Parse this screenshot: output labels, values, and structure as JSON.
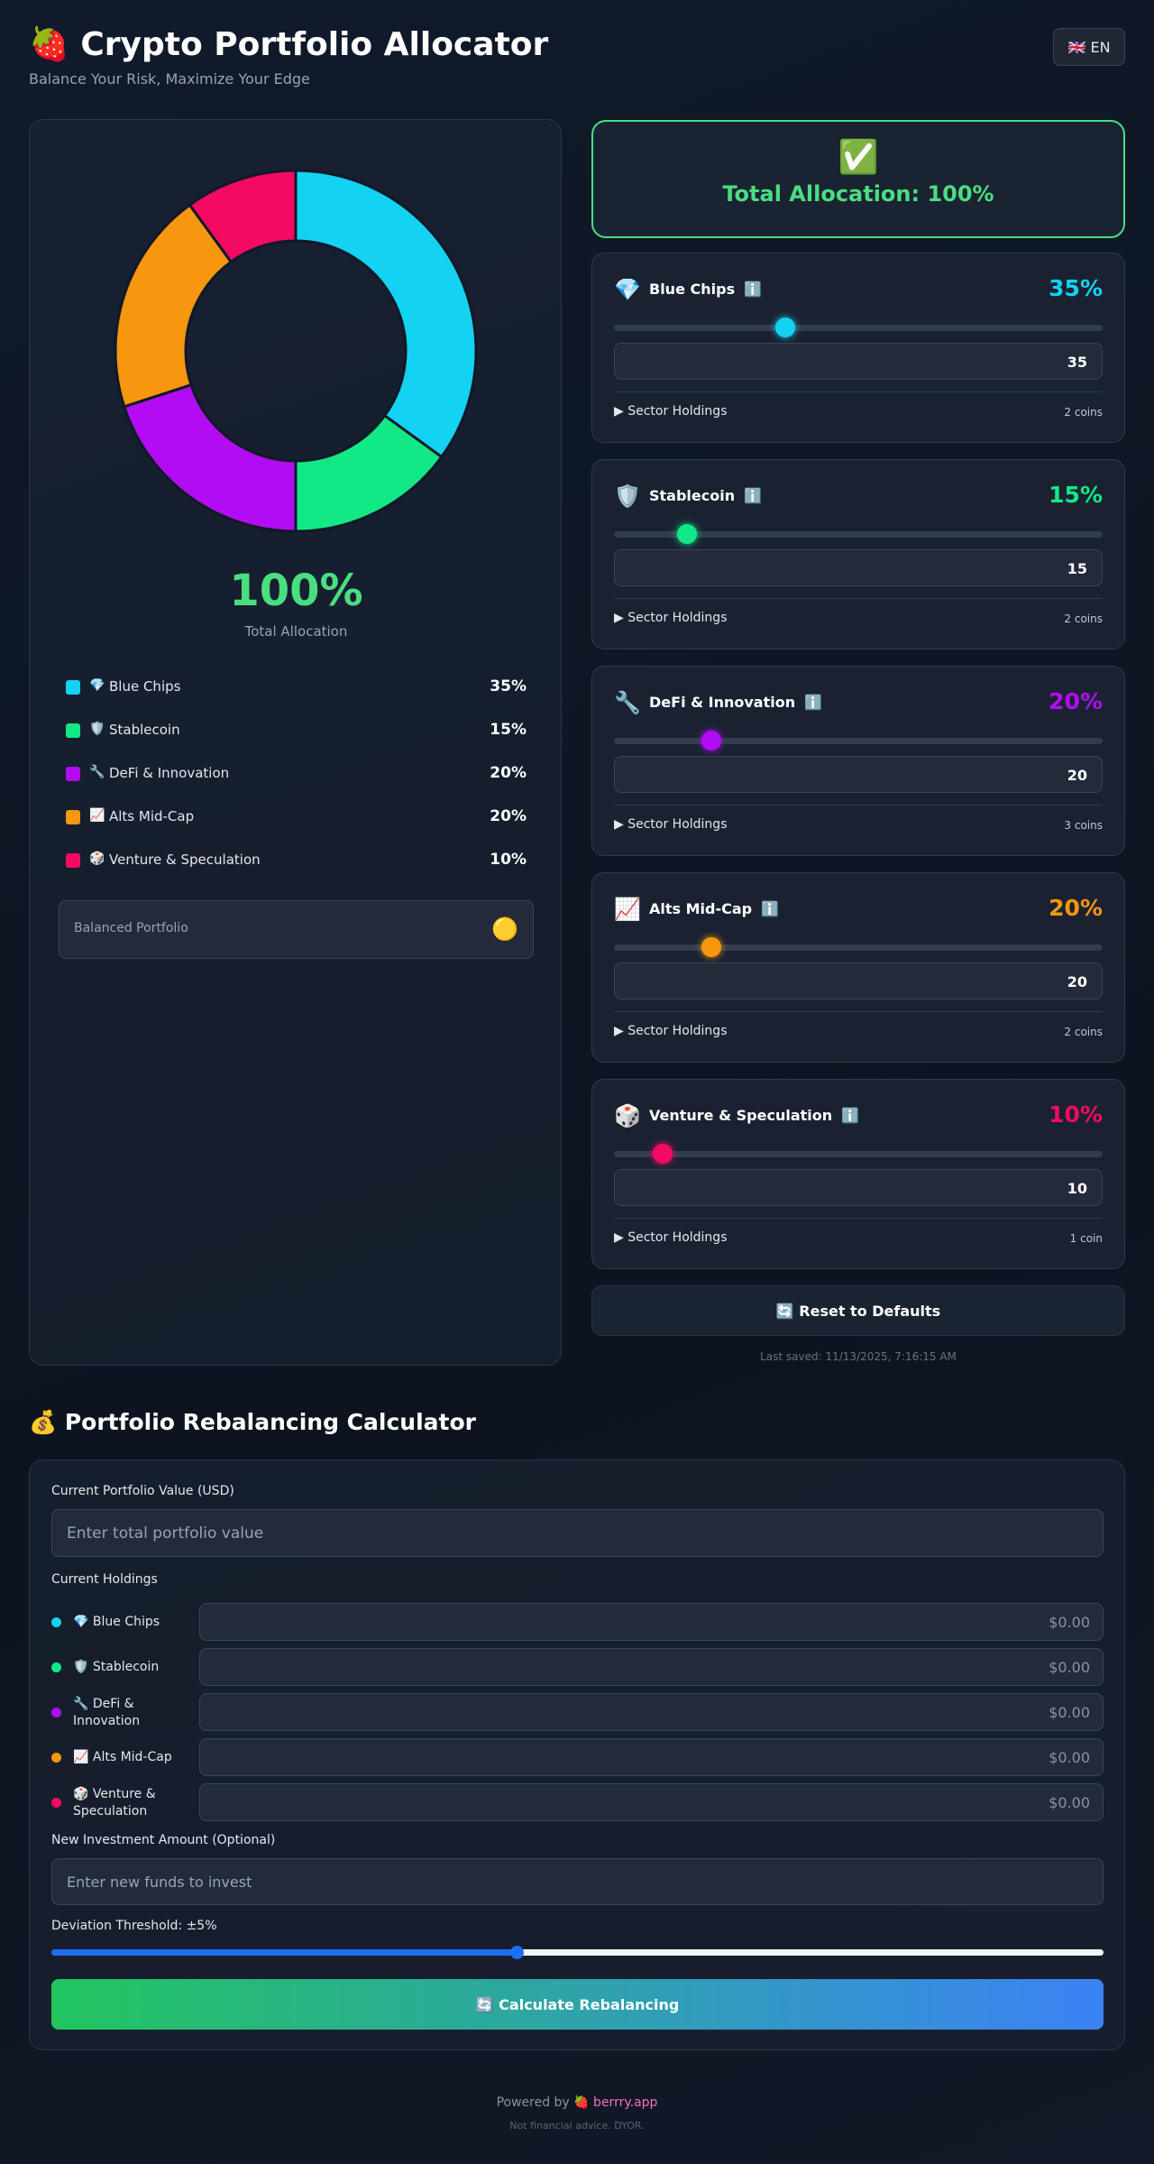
{
  "header": {
    "title": "🍓 Crypto Portfolio Allocator",
    "subtitle": "Balance Your Risk, Maximize Your Edge",
    "language": "🇬🇧 EN"
  },
  "summary": {
    "total": "100%",
    "total_caption": "Total Allocation",
    "status_icon": "✅",
    "status": "Total Allocation: 100%",
    "profile": "Balanced Portfolio",
    "profile_icon": "🟡"
  },
  "sectors": [
    {
      "icon": "💎",
      "name": "Blue Chips",
      "color": "#14d2f2",
      "value": 35,
      "value_label": "35%",
      "holdings": "▶ Sector Holdings",
      "coins": "2 coins"
    },
    {
      "icon": "🛡️",
      "name": "Stablecoin",
      "color": "#12e886",
      "value": 15,
      "value_label": "15%",
      "holdings": "▶ Sector Holdings",
      "coins": "2 coins"
    },
    {
      "icon": "🔧",
      "name": "DeFi & Innovation",
      "color": "#b20cf2",
      "value": 20,
      "value_label": "20%",
      "holdings": "▶ Sector Holdings",
      "coins": "3 coins"
    },
    {
      "icon": "📈",
      "name": "Alts Mid-Cap",
      "color": "#f7960f",
      "value": 20,
      "value_label": "20%",
      "holdings": "▶ Sector Holdings",
      "coins": "2 coins"
    },
    {
      "icon": "🎲",
      "name": "Venture & Speculation",
      "color": "#f50a63",
      "value": 10,
      "value_label": "10%",
      "holdings": "▶ Sector Holdings",
      "coins": "1 coin"
    }
  ],
  "info_icon": "ℹ️",
  "reset": "🔄 Reset to Defaults",
  "last_saved": "Last saved: 11/13/2025, 7:16:15 AM",
  "calculator": {
    "title": "💰 Portfolio Rebalancing Calculator",
    "value_label": "Current Portfolio Value (USD)",
    "value_placeholder": "Enter total portfolio value",
    "holdings_label": "Current Holdings",
    "holding_placeholder": "$0.00",
    "new_label": "New Investment Amount (Optional)",
    "new_placeholder": "Enter new funds to invest",
    "threshold_label": "Deviation Threshold: ±5%",
    "button": "🔄 Calculate Rebalancing"
  },
  "footer": {
    "powered": "Powered by",
    "brand": "🍓 berrry.app",
    "disclaimer": "Not financial advice. DYOR."
  }
}
